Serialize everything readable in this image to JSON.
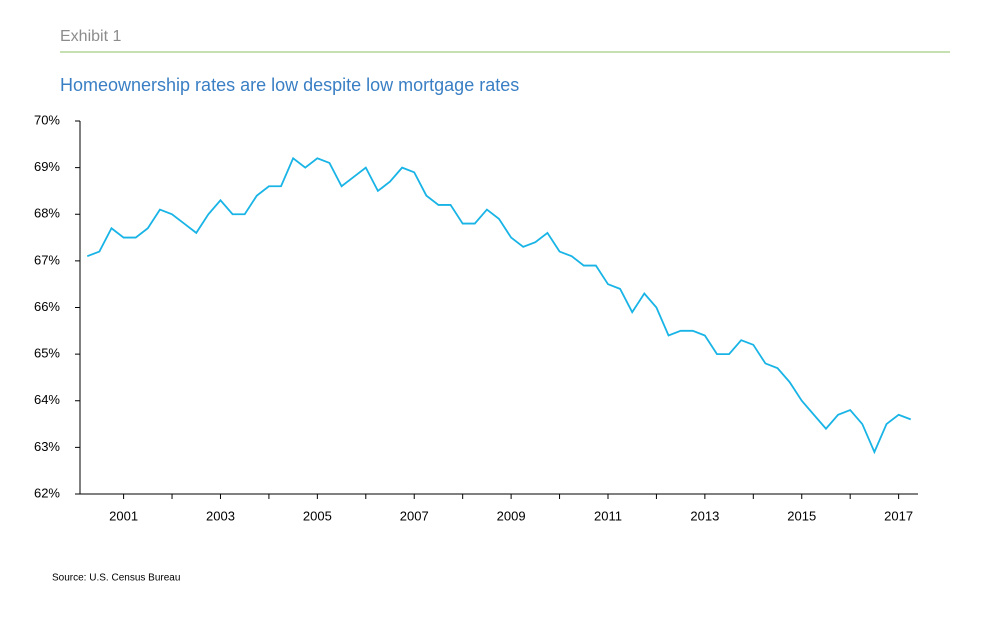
{
  "exhibit": "Exhibit 1",
  "source": "Source: U.S. Census Bureau",
  "chart_data": {
    "type": "line",
    "title": "Homeownership rates are low despite low mortgage rates",
    "x": [
      2000.25,
      2000.5,
      2000.75,
      2001,
      2001.25,
      2001.5,
      2001.75,
      2002,
      2002.25,
      2002.5,
      2002.75,
      2003,
      2003.25,
      2003.5,
      2003.75,
      2004,
      2004.25,
      2004.5,
      2004.75,
      2005,
      2005.25,
      2005.5,
      2005.75,
      2006,
      2006.25,
      2006.5,
      2006.75,
      2007,
      2007.25,
      2007.5,
      2007.75,
      2008,
      2008.25,
      2008.5,
      2008.75,
      2009,
      2009.25,
      2009.5,
      2009.75,
      2010,
      2010.25,
      2010.5,
      2010.75,
      2011,
      2011.25,
      2011.5,
      2011.75,
      2012,
      2012.25,
      2012.5,
      2012.75,
      2013,
      2013.25,
      2013.5,
      2013.75,
      2014,
      2014.25,
      2014.5,
      2014.75,
      2015,
      2015.25,
      2015.5,
      2015.75,
      2016,
      2016.25,
      2016.5,
      2016.75,
      2017,
      2017.25
    ],
    "series": [
      {
        "color": "#19b4e6",
        "values": [
          67.1,
          67.2,
          67.7,
          67.5,
          67.5,
          67.7,
          68.1,
          68.0,
          67.8,
          67.6,
          68.0,
          68.3,
          68.0,
          68.0,
          68.4,
          68.6,
          68.6,
          69.2,
          69.0,
          69.2,
          69.1,
          68.6,
          68.8,
          69.0,
          68.5,
          68.7,
          69.0,
          68.9,
          68.4,
          68.2,
          68.2,
          67.8,
          67.8,
          68.1,
          67.9,
          67.5,
          67.3,
          67.4,
          67.6,
          67.2,
          67.1,
          66.9,
          66.9,
          66.5,
          66.4,
          65.9,
          66.3,
          66.0,
          65.4,
          65.5,
          65.5,
          65.4,
          65.0,
          65.0,
          65.3,
          65.2,
          64.8,
          64.7,
          64.4,
          64.0,
          63.7,
          63.4,
          63.7,
          63.8,
          63.5,
          62.9,
          63.5,
          63.7,
          63.6
        ]
      }
    ],
    "xlim": [
      2000.1,
      2017.4
    ],
    "xticks": [
      2001,
      2003,
      2005,
      2007,
      2009,
      2011,
      2013,
      2015,
      2017
    ],
    "xminor_ticks": [
      2002,
      2004,
      2006,
      2008,
      2010,
      2012,
      2014,
      2016
    ],
    "ylim": [
      62,
      70
    ],
    "yticks": [
      {
        "value": 62,
        "label": "62%"
      },
      {
        "value": 63,
        "label": "63%"
      },
      {
        "value": 64,
        "label": "64%"
      },
      {
        "value": 65,
        "label": "65%"
      },
      {
        "value": 66,
        "label": "66%"
      },
      {
        "value": 67,
        "label": "67%"
      },
      {
        "value": 68,
        "label": "68%"
      },
      {
        "value": 69,
        "label": "69%"
      },
      {
        "value": 70,
        "label": "70%"
      }
    ],
    "grid": false
  }
}
